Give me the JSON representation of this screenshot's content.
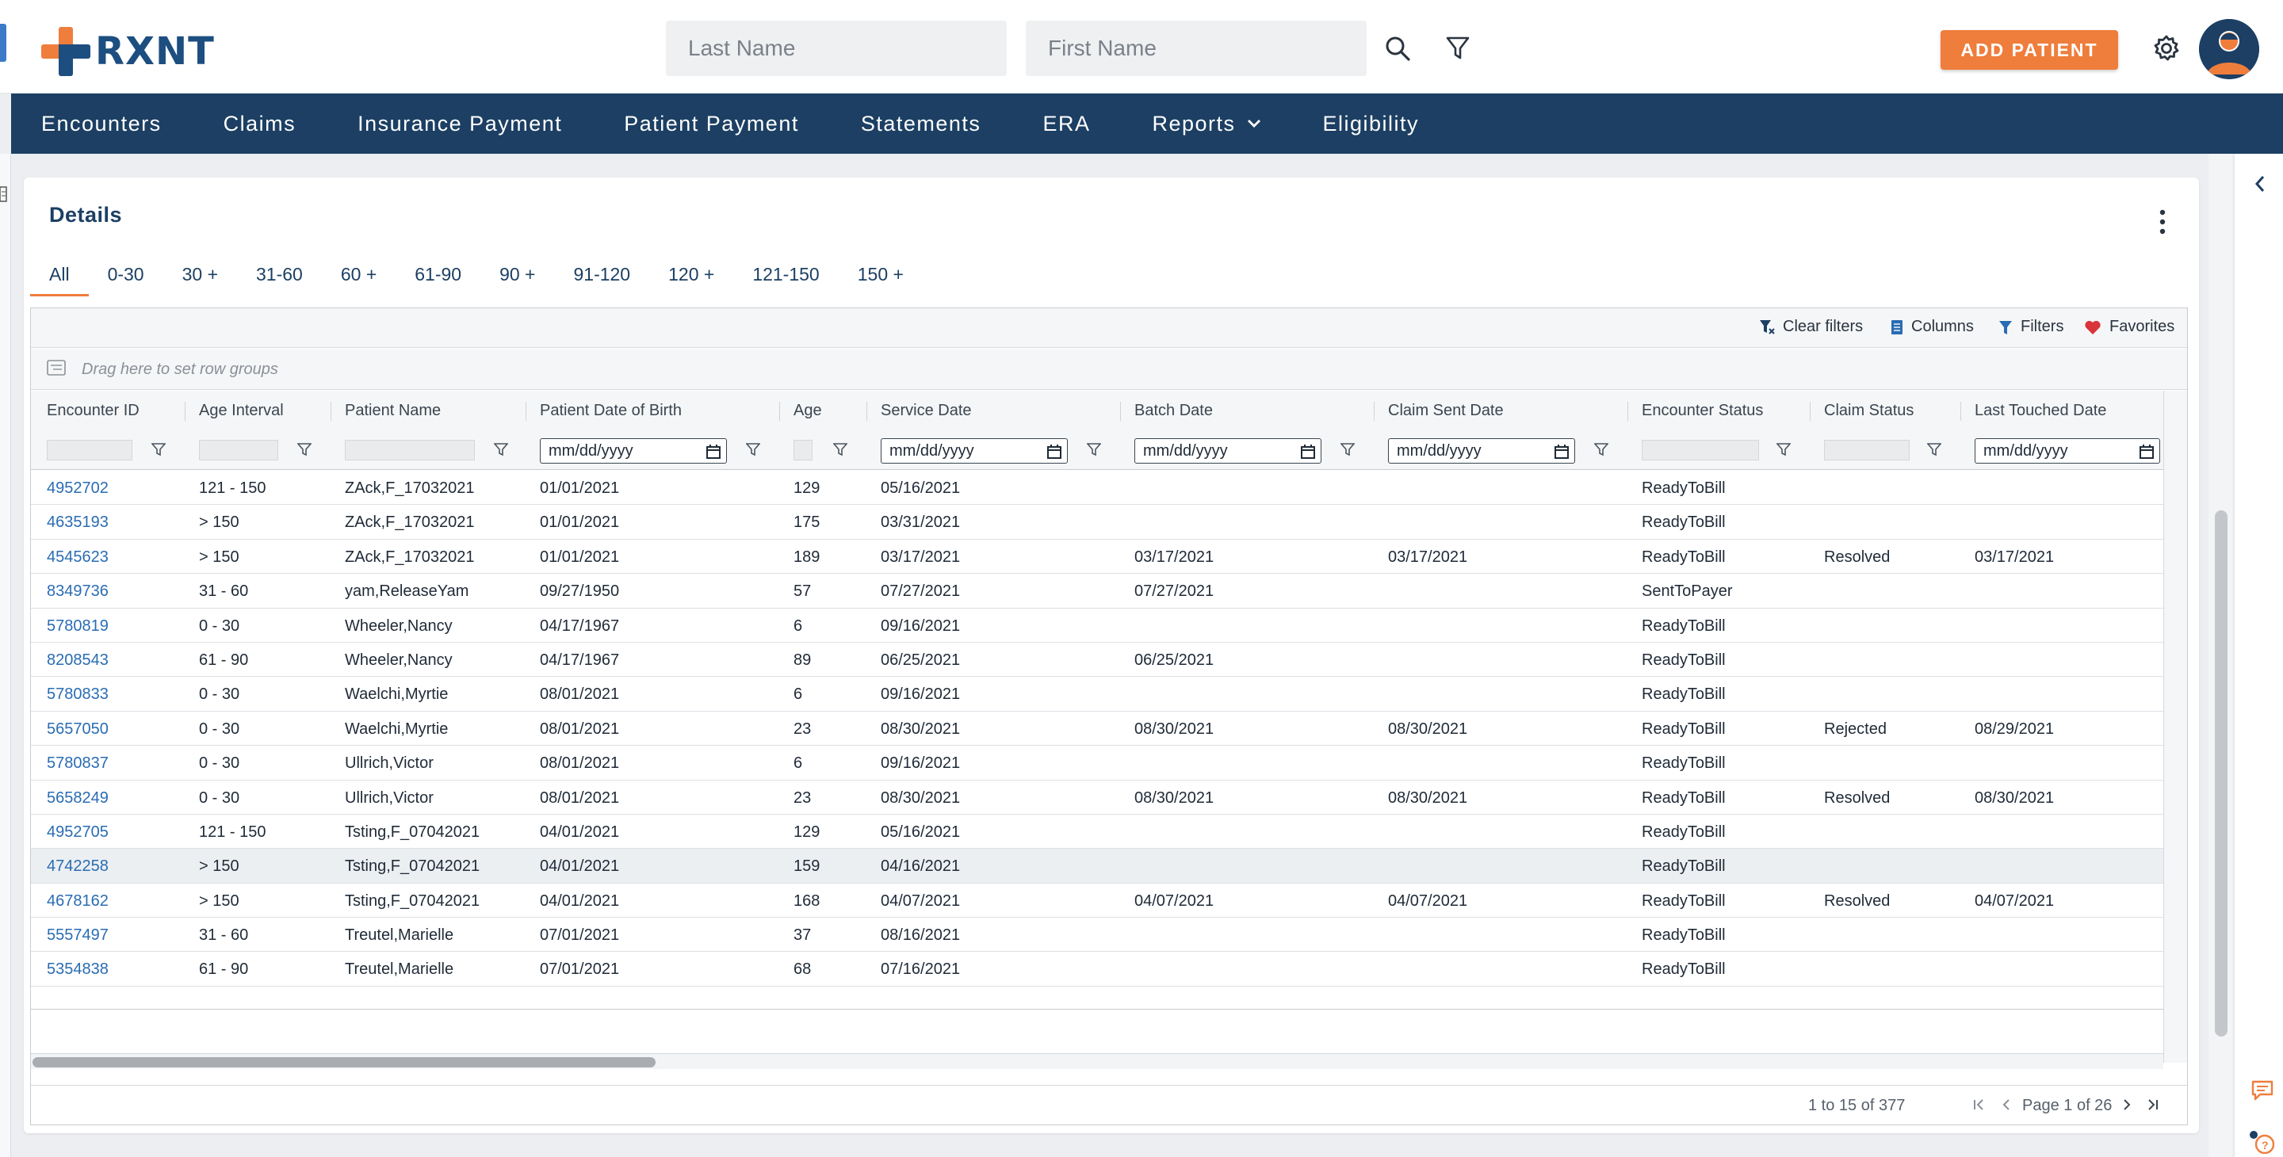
{
  "brand": {
    "logo_text": "RXNT",
    "accent": "#ef7d3c",
    "navy": "#1c3f63"
  },
  "search": {
    "last_name_placeholder": "Last Name",
    "first_name_placeholder": "First Name"
  },
  "header": {
    "add_patient_label": "ADD PATIENT"
  },
  "nav": {
    "items": [
      {
        "label": "Encounters"
      },
      {
        "label": "Claims"
      },
      {
        "label": "Insurance Payment"
      },
      {
        "label": "Patient Payment"
      },
      {
        "label": "Statements"
      },
      {
        "label": "ERA"
      },
      {
        "label": "Reports",
        "has_dropdown": true
      },
      {
        "label": "Eligibility"
      }
    ]
  },
  "details": {
    "title": "Details",
    "tabs": [
      "All",
      "0-30",
      "30 +",
      "31-60",
      "60 +",
      "61-90",
      "90 +",
      "91-120",
      "120 +",
      "121-150",
      "150 +"
    ],
    "active_tab": "All"
  },
  "toolbar": {
    "clear_filters": "Clear filters",
    "columns": "Columns",
    "filters": "Filters",
    "favorites": "Favorites"
  },
  "group_bar": {
    "placeholder": "Drag here to set row groups"
  },
  "grid": {
    "columns": [
      "Encounter ID",
      "Age Interval",
      "Patient Name",
      "Patient Date of Birth",
      "Age",
      "Service Date",
      "Batch Date",
      "Claim Sent Date",
      "Encounter Status",
      "Claim Status",
      "Last Touched Date"
    ],
    "date_placeholder": "mm/dd/yyyy",
    "rows": [
      [
        "4952702",
        "121 - 150",
        "ZAck,F_17032021",
        "01/01/2021",
        "129",
        "05/16/2021",
        "",
        "",
        "ReadyToBill",
        "",
        ""
      ],
      [
        "4635193",
        "> 150",
        "ZAck,F_17032021",
        "01/01/2021",
        "175",
        "03/31/2021",
        "",
        "",
        "ReadyToBill",
        "",
        ""
      ],
      [
        "4545623",
        "> 150",
        "ZAck,F_17032021",
        "01/01/2021",
        "189",
        "03/17/2021",
        "03/17/2021",
        "03/17/2021",
        "ReadyToBill",
        "Resolved",
        "03/17/2021"
      ],
      [
        "8349736",
        "31 - 60",
        "yam,ReleaseYam",
        "09/27/1950",
        "57",
        "07/27/2021",
        "07/27/2021",
        "",
        "SentToPayer",
        "",
        ""
      ],
      [
        "5780819",
        "0 - 30",
        "Wheeler,Nancy",
        "04/17/1967",
        "6",
        "09/16/2021",
        "",
        "",
        "ReadyToBill",
        "",
        ""
      ],
      [
        "8208543",
        "61 - 90",
        "Wheeler,Nancy",
        "04/17/1967",
        "89",
        "06/25/2021",
        "06/25/2021",
        "",
        "ReadyToBill",
        "",
        ""
      ],
      [
        "5780833",
        "0 - 30",
        "Waelchi,Myrtie",
        "08/01/2021",
        "6",
        "09/16/2021",
        "",
        "",
        "ReadyToBill",
        "",
        ""
      ],
      [
        "5657050",
        "0 - 30",
        "Waelchi,Myrtie",
        "08/01/2021",
        "23",
        "08/30/2021",
        "08/30/2021",
        "08/30/2021",
        "ReadyToBill",
        "Rejected",
        "08/29/2021"
      ],
      [
        "5780837",
        "0 - 30",
        "Ullrich,Victor",
        "08/01/2021",
        "6",
        "09/16/2021",
        "",
        "",
        "ReadyToBill",
        "",
        ""
      ],
      [
        "5658249",
        "0 - 30",
        "Ullrich,Victor",
        "08/01/2021",
        "23",
        "08/30/2021",
        "08/30/2021",
        "08/30/2021",
        "ReadyToBill",
        "Resolved",
        "08/30/2021"
      ],
      [
        "4952705",
        "121 - 150",
        "Tsting,F_07042021",
        "04/01/2021",
        "129",
        "05/16/2021",
        "",
        "",
        "ReadyToBill",
        "",
        ""
      ],
      [
        "4742258",
        "> 150",
        "Tsting,F_07042021",
        "04/01/2021",
        "159",
        "04/16/2021",
        "",
        "",
        "ReadyToBill",
        "",
        ""
      ],
      [
        "4678162",
        "> 150",
        "Tsting,F_07042021",
        "04/01/2021",
        "168",
        "04/07/2021",
        "04/07/2021",
        "04/07/2021",
        "ReadyToBill",
        "Resolved",
        "04/07/2021"
      ],
      [
        "5557497",
        "31 - 60",
        "Treutel,Marielle",
        "07/01/2021",
        "37",
        "08/16/2021",
        "",
        "",
        "ReadyToBill",
        "",
        ""
      ],
      [
        "5354838",
        "61 - 90",
        "Treutel,Marielle",
        "07/01/2021",
        "68",
        "07/16/2021",
        "",
        "",
        "ReadyToBill",
        "",
        ""
      ]
    ],
    "highlighted_row": 11
  },
  "pagination": {
    "range": "1 to 15 of 377",
    "page": "Page 1 of 26"
  }
}
